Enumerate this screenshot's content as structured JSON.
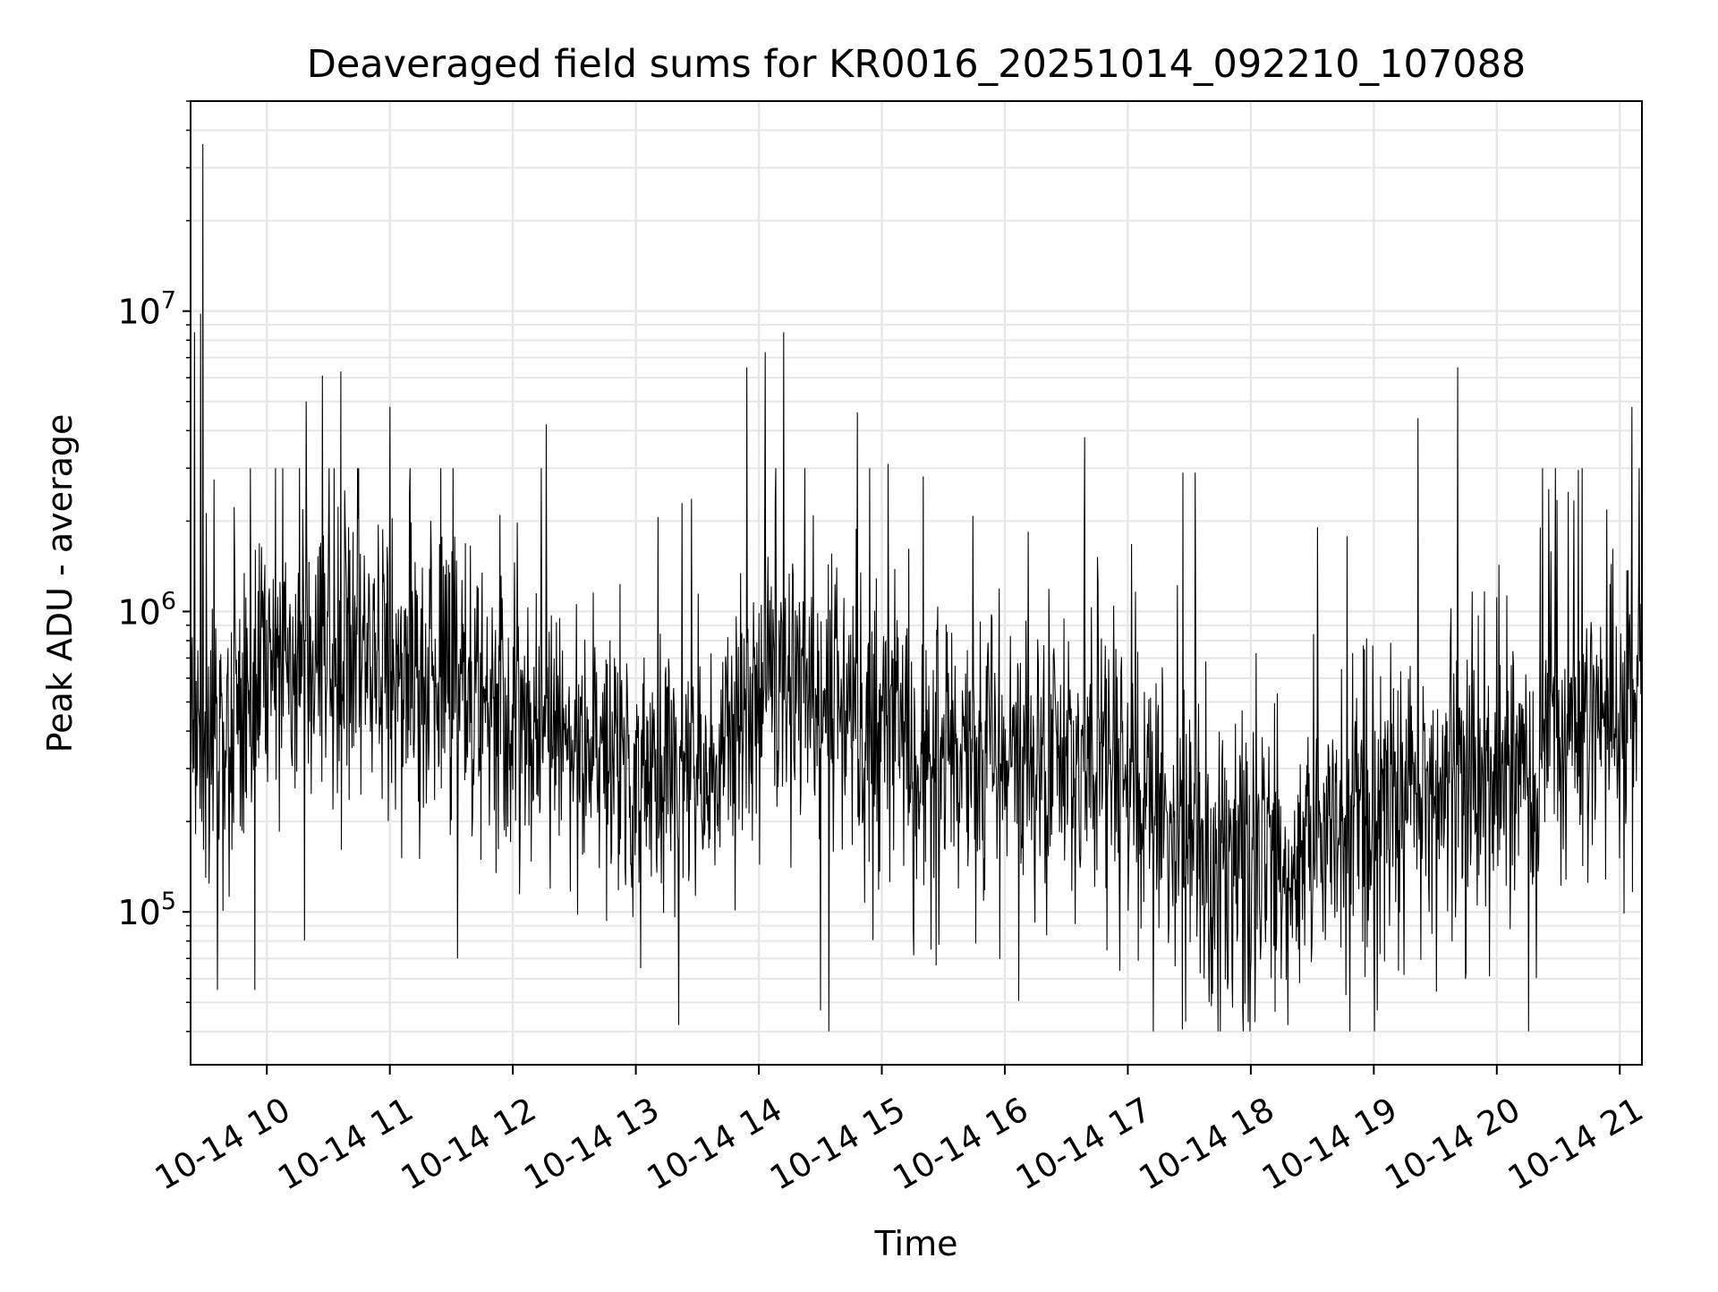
{
  "chart_data": {
    "type": "line",
    "title": "Deaveraged field sums for KR0016_20251014_092210_107088",
    "xlabel": "Time",
    "ylabel": "Peak ADU - average",
    "yscale": "log",
    "ylim": [
      31000,
      50000000
    ],
    "xlim_hours": [
      9.38,
      21.18
    ],
    "x_ticks": [
      {
        "hour": 10,
        "label": "10-14 10"
      },
      {
        "hour": 11,
        "label": "10-14 11"
      },
      {
        "hour": 12,
        "label": "10-14 12"
      },
      {
        "hour": 13,
        "label": "10-14 13"
      },
      {
        "hour": 14,
        "label": "10-14 14"
      },
      {
        "hour": 15,
        "label": "10-14 15"
      },
      {
        "hour": 16,
        "label": "10-14 16"
      },
      {
        "hour": 17,
        "label": "10-14 17"
      },
      {
        "hour": 18,
        "label": "10-14 18"
      },
      {
        "hour": 19,
        "label": "10-14 19"
      },
      {
        "hour": 20,
        "label": "10-14 20"
      },
      {
        "hour": 21,
        "label": "10-14 21"
      }
    ],
    "y_ticks": [
      {
        "value": 100000,
        "base": "10",
        "exp": "5"
      },
      {
        "value": 1000000,
        "base": "10",
        "exp": "6"
      },
      {
        "value": 10000000,
        "base": "10",
        "exp": "7"
      }
    ],
    "grid": true,
    "series": [
      {
        "name": "deaveraged field sum",
        "color": "#000000",
        "baseline": {
          "hours": [
            9.38,
            9.6,
            9.9,
            10.3,
            10.7,
            11.2,
            11.8,
            12.3,
            12.8,
            13.3,
            13.8,
            14.15,
            14.5,
            15.0,
            15.5,
            16.0,
            16.5,
            17.0,
            17.3,
            17.7,
            18.0,
            18.5,
            19.0,
            19.5,
            20.0,
            20.5,
            21.0,
            21.18
          ],
          "values": [
            450000,
            330000,
            550000,
            700000,
            720000,
            600000,
            520000,
            420000,
            330000,
            260000,
            380000,
            620000,
            420000,
            380000,
            360000,
            330000,
            330000,
            340000,
            180000,
            160000,
            155000,
            170000,
            210000,
            240000,
            280000,
            380000,
            450000,
            520000
          ]
        },
        "spikes": [
          {
            "hour": 9.48,
            "value": 36000000
          },
          {
            "hour": 9.41,
            "value": 8500000
          },
          {
            "hour": 9.46,
            "value": 9800000
          },
          {
            "hour": 10.6,
            "value": 6300000
          },
          {
            "hour": 10.45,
            "value": 6100000
          },
          {
            "hour": 10.32,
            "value": 5000000
          },
          {
            "hour": 11.0,
            "value": 4800000
          },
          {
            "hour": 12.27,
            "value": 4200000
          },
          {
            "hour": 13.9,
            "value": 6500000
          },
          {
            "hour": 14.2,
            "value": 8500000
          },
          {
            "hour": 14.05,
            "value": 7300000
          },
          {
            "hour": 14.8,
            "value": 4600000
          },
          {
            "hour": 15.05,
            "value": 3100000
          },
          {
            "hour": 16.65,
            "value": 3800000
          },
          {
            "hour": 17.45,
            "value": 2900000
          },
          {
            "hour": 17.55,
            "value": 2900000
          },
          {
            "hour": 19.36,
            "value": 4400000
          },
          {
            "hour": 19.68,
            "value": 6500000
          },
          {
            "hour": 20.58,
            "value": 2500000
          },
          {
            "hour": 21.1,
            "value": 4800000
          },
          {
            "hour": 9.6,
            "value": 55000
          },
          {
            "hour": 9.9,
            "value": 55000
          },
          {
            "hour": 11.55,
            "value": 70000
          },
          {
            "hour": 13.35,
            "value": 42000
          },
          {
            "hour": 14.5,
            "value": 47000
          },
          {
            "hour": 17.98,
            "value": 43000
          },
          {
            "hour": 18.3,
            "value": 42000
          },
          {
            "hour": 17.85,
            "value": 48000
          },
          {
            "hour": 15.4,
            "value": 75000
          }
        ]
      }
    ]
  }
}
